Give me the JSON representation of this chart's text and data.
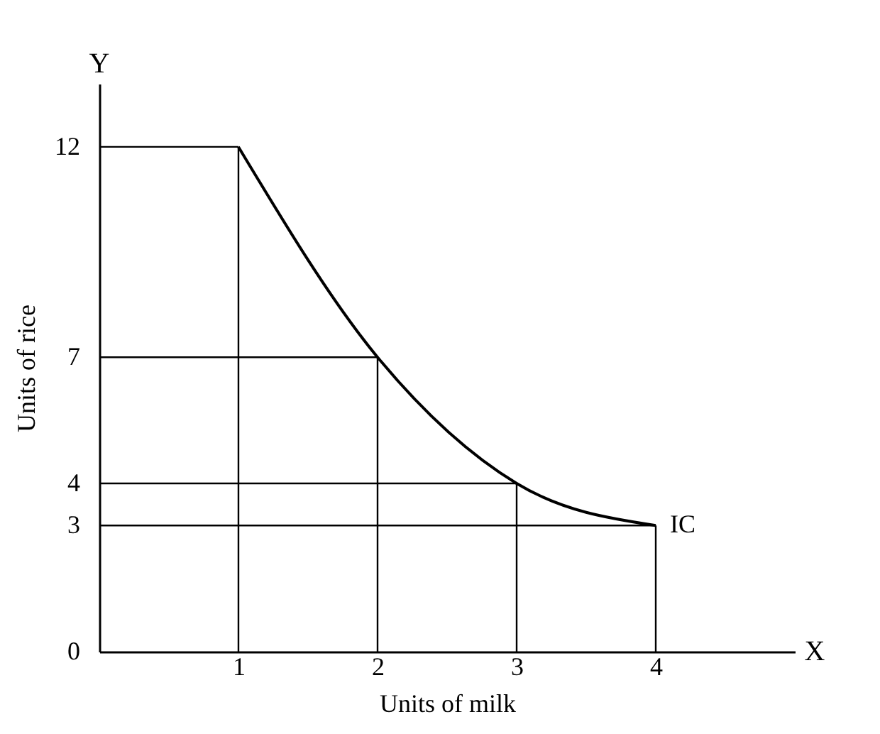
{
  "chart_data": {
    "type": "line",
    "xlabel": "Units of milk",
    "ylabel": "Units of rice",
    "x": [
      1,
      2,
      3,
      4
    ],
    "series": [
      {
        "name": "IC",
        "color": "#000000",
        "values": [
          12,
          7,
          4,
          3
        ]
      }
    ],
    "xlim": [
      0,
      5
    ],
    "ylim": [
      0,
      13.5
    ],
    "xticks": [
      1,
      2,
      3,
      4
    ],
    "yticks": [
      0,
      3,
      4,
      7,
      12
    ],
    "grid": false,
    "marker": "none",
    "annotations": [
      "X",
      "Y"
    ],
    "ref_lines": [
      {
        "axis": "x",
        "value": 1
      },
      {
        "axis": "x",
        "value": 2
      },
      {
        "axis": "x",
        "value": 3
      },
      {
        "axis": "x",
        "value": 4
      },
      {
        "axis": "y",
        "value": 12
      },
      {
        "axis": "y",
        "value": 7
      },
      {
        "axis": "y",
        "value": 4
      },
      {
        "axis": "y",
        "value": 3
      }
    ]
  }
}
